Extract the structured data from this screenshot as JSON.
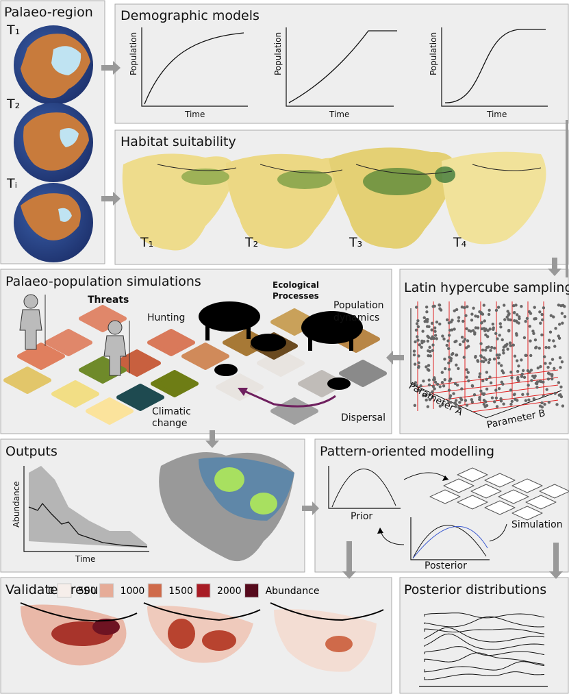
{
  "palaeo_region": {
    "title": "Palaeo-region",
    "times": [
      "T₁",
      "T₂",
      "Tᵢ"
    ]
  },
  "demographic_models": {
    "title": "Demographic models",
    "y_label": "Population",
    "x_label": "Time"
  },
  "habitat_suitability": {
    "title": "Habitat suitability",
    "times": [
      "T₁",
      "T₂",
      "T₃",
      "T₄"
    ]
  },
  "simulations": {
    "title": "Palaeo-population simulations",
    "threats": "Threats",
    "hunting": "Hunting",
    "climatic": [
      "Climatic",
      "change"
    ],
    "ecological": [
      "Ecological",
      "Processes"
    ],
    "population_dynamics": [
      "Population",
      "dynamics"
    ],
    "dispersal": "Dispersal"
  },
  "latin_hypercube": {
    "title": "Latin hypercube sampling",
    "axis_a": "Parameter A",
    "axis_b": "Parameter B"
  },
  "outputs": {
    "title": "Outputs",
    "y_label": "Abundance",
    "x_label": "Time"
  },
  "pattern_oriented": {
    "title": "Pattern-oriented modelling",
    "prior": "Prior",
    "simulation": "Simulation",
    "posterior": "Posterior"
  },
  "validated_results": {
    "title": "Validated results",
    "legend": [
      {
        "value": 0,
        "color": "#f6eeea"
      },
      {
        "value": 500,
        "color": "#e6ac98"
      },
      {
        "value": 1000,
        "color": "#cf6a4a"
      },
      {
        "value": 1500,
        "color": "#a81c25"
      },
      {
        "value": 2000,
        "color": "#560a1c"
      }
    ],
    "legend_title": "Abundance"
  },
  "posterior_distributions": {
    "title": "Posterior distributions"
  }
}
